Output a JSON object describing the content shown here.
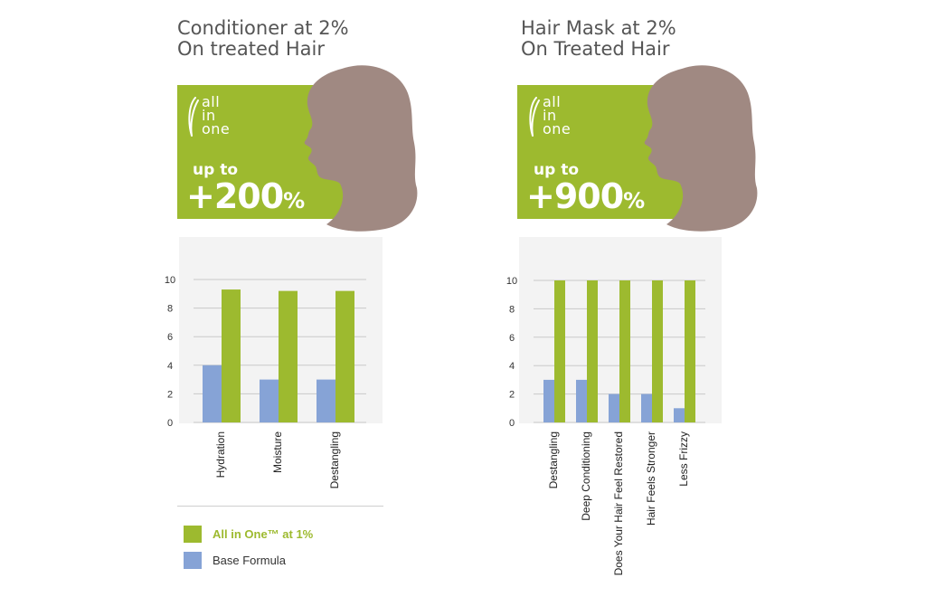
{
  "colors": {
    "green": "#9dba2f",
    "blue": "#86a3d6",
    "silhouette": "#a08982",
    "plot_bg": "#f3f3f3",
    "title": "#555555"
  },
  "left": {
    "title_line1": "Conditioner at 2%",
    "title_line2": "On treated Hair",
    "logo": [
      "all",
      "in",
      "one"
    ],
    "up_to": "up to",
    "big_number": "+200",
    "pct": "%"
  },
  "right": {
    "title_line1": "Hair Mask at 2%",
    "title_line2": "On Treated Hair",
    "logo": [
      "all",
      "in",
      "one"
    ],
    "up_to": "up to",
    "big_number": "+900",
    "pct": "%"
  },
  "legend": {
    "green_label": "All in One™ at 1%",
    "blue_label": "Base Formula"
  },
  "chart_data": [
    {
      "type": "bar",
      "categories": [
        "Hydration",
        "Moisture",
        "Destangling"
      ],
      "series": [
        {
          "name": "Base Formula",
          "values": [
            4,
            3,
            3
          ]
        },
        {
          "name": "All in One™ at 1%",
          "values": [
            9.3,
            9.2,
            9.2
          ]
        }
      ],
      "yticks": [
        0,
        2,
        4,
        6,
        8,
        10
      ],
      "ylim": [
        0,
        10
      ],
      "grid": true
    },
    {
      "type": "bar",
      "categories": [
        "Destangling",
        "Deep Conditioning",
        "Does Your Hair Feel Restored",
        "Hair Feels Stronger",
        "Less Frizzy"
      ],
      "series": [
        {
          "name": "Base Formula",
          "values": [
            3,
            3,
            2,
            2,
            1
          ]
        },
        {
          "name": "All in One™ at 1%",
          "values": [
            10,
            10,
            10,
            10,
            10
          ]
        }
      ],
      "yticks": [
        0,
        2,
        4,
        6,
        8,
        10
      ],
      "ylim": [
        0,
        10
      ],
      "grid": true
    }
  ]
}
